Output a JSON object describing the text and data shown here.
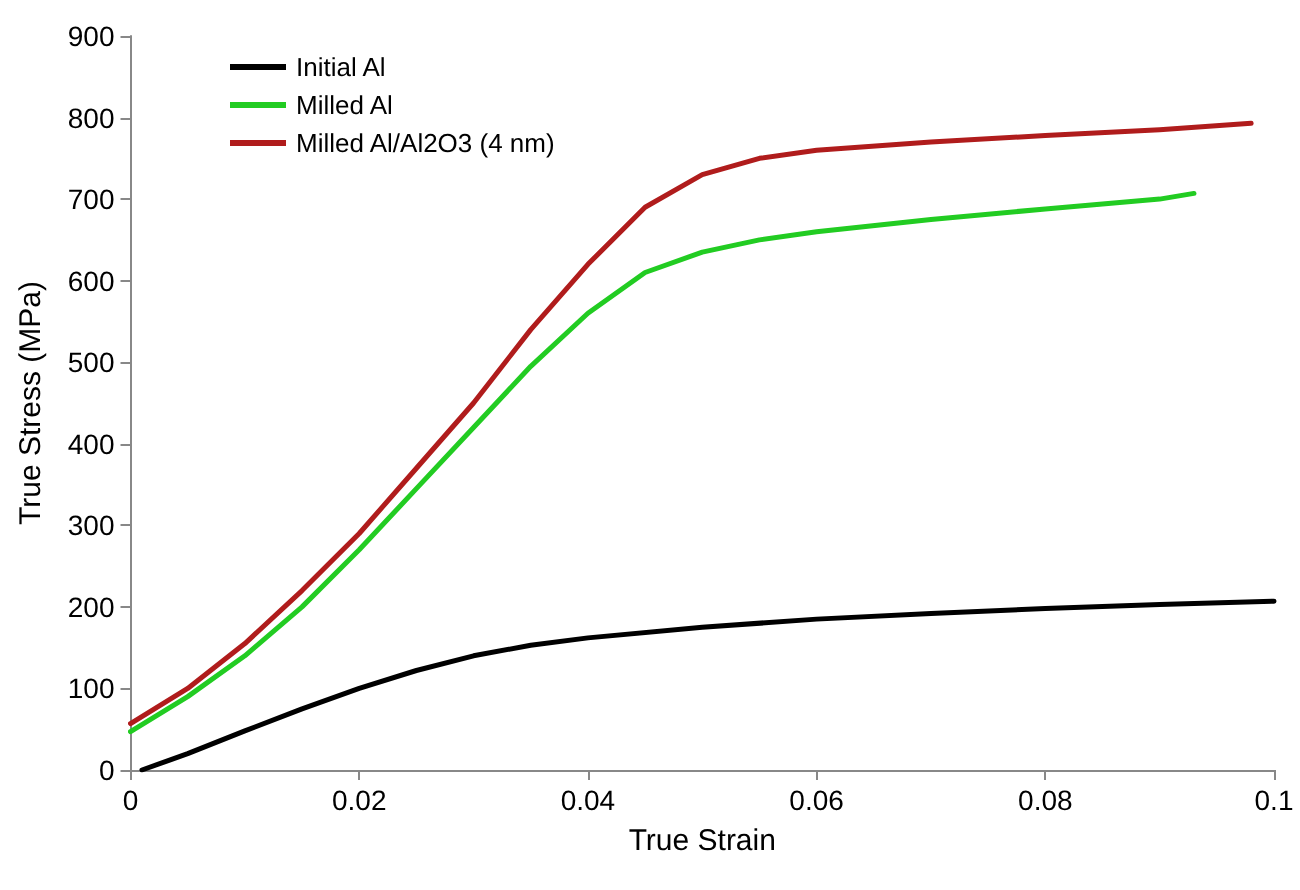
{
  "chart_data": {
    "type": "line",
    "xlabel": "True Strain",
    "ylabel": "True Stress (MPa)",
    "xlim": [
      0,
      0.1
    ],
    "xticks": [
      0,
      0.02,
      0.04,
      0.06,
      0.08,
      0.1
    ],
    "ylim": [
      0,
      900
    ],
    "yticks": [
      0,
      100,
      200,
      300,
      400,
      500,
      600,
      700,
      800,
      900
    ],
    "grid": false,
    "legend": "top left",
    "marker": "none",
    "line_style": "solid",
    "series": [
      {
        "name": "Initial Al",
        "color": "#000000",
        "x": [
          0.001,
          0.005,
          0.01,
          0.015,
          0.02,
          0.025,
          0.03,
          0.035,
          0.04,
          0.05,
          0.06,
          0.07,
          0.08,
          0.09,
          0.1
        ],
        "values": [
          0,
          20,
          48,
          75,
          100,
          122,
          140,
          153,
          162,
          175,
          185,
          192,
          198,
          203,
          207
        ]
      },
      {
        "name": "Milled Al",
        "color": "#22cc22",
        "x": [
          0,
          0.005,
          0.01,
          0.015,
          0.02,
          0.025,
          0.03,
          0.035,
          0.04,
          0.045,
          0.05,
          0.055,
          0.06,
          0.07,
          0.08,
          0.09,
          0.093
        ],
        "values": [
          47,
          90,
          140,
          200,
          270,
          345,
          420,
          495,
          560,
          610,
          635,
          650,
          660,
          675,
          688,
          700,
          707
        ]
      },
      {
        "name": "Milled Al/Al2O3 (4 nm)",
        "color": "#b01c1c",
        "x": [
          0,
          0.005,
          0.01,
          0.015,
          0.02,
          0.025,
          0.03,
          0.035,
          0.04,
          0.045,
          0.05,
          0.055,
          0.06,
          0.07,
          0.08,
          0.09,
          0.098
        ],
        "values": [
          57,
          100,
          155,
          220,
          290,
          370,
          450,
          540,
          620,
          690,
          730,
          750,
          760,
          770,
          778,
          785,
          793
        ]
      }
    ]
  }
}
